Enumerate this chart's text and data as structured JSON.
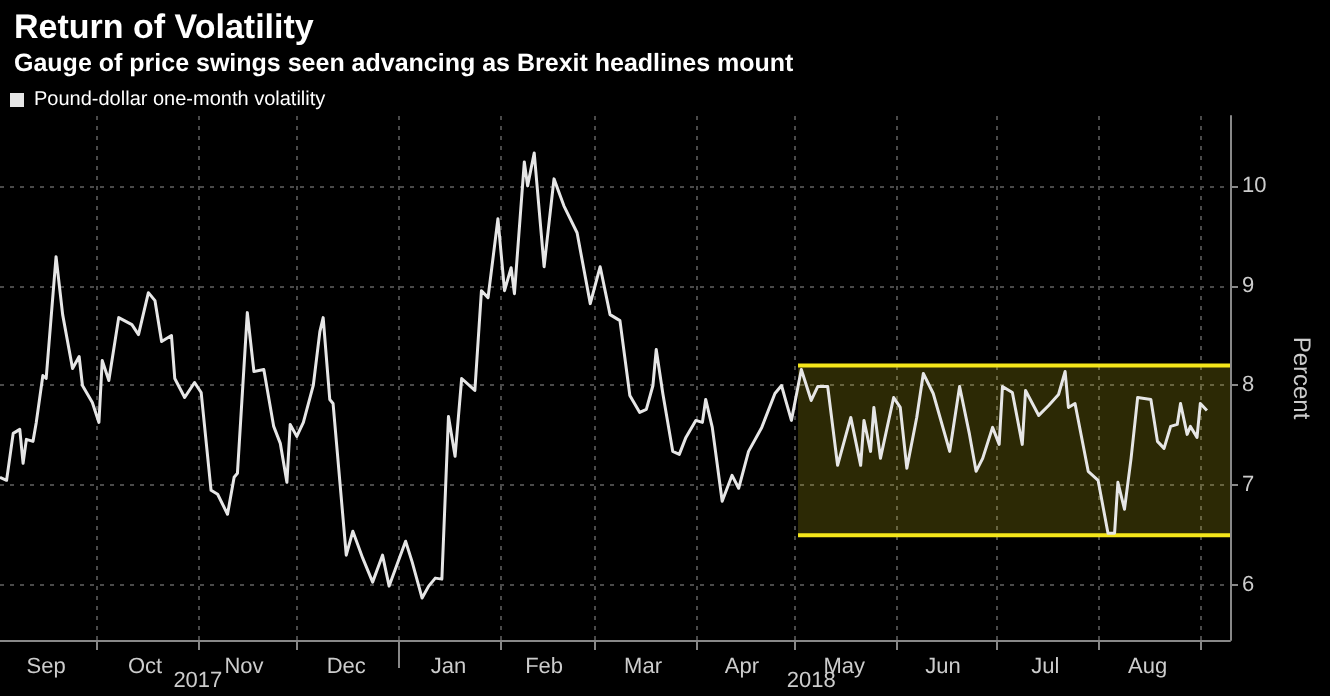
{
  "chart_data": {
    "type": "line",
    "title": "Return of Volatility",
    "subtitle": "Gauge of price swings seen advancing as Brexit headlines mount",
    "ylabel": "Percent",
    "x": [
      "2017-09-02",
      "2017-09-04",
      "2017-09-06",
      "2017-09-08",
      "2017-09-09",
      "2017-09-10",
      "2017-09-12",
      "2017-09-13",
      "2017-09-15",
      "2017-09-16",
      "2017-09-19",
      "2017-09-21",
      "2017-09-24",
      "2017-09-26",
      "2017-09-27",
      "2017-09-30",
      "2017-10-02",
      "2017-10-03",
      "2017-10-05",
      "2017-10-08",
      "2017-10-12",
      "2017-10-14",
      "2017-10-17",
      "2017-10-19",
      "2017-10-21",
      "2017-10-24",
      "2017-10-25",
      "2017-10-28",
      "2017-10-31",
      "2017-11-02",
      "2017-11-05",
      "2017-11-07",
      "2017-11-10",
      "2017-11-12",
      "2017-11-13",
      "2017-11-16",
      "2017-11-18",
      "2017-11-21",
      "2017-11-24",
      "2017-11-26",
      "2017-11-28",
      "2017-11-29",
      "2017-12-01",
      "2017-12-03",
      "2017-12-06",
      "2017-12-08",
      "2017-12-09",
      "2017-12-11",
      "2017-12-12",
      "2017-12-16",
      "2017-12-18",
      "2017-12-21",
      "2017-12-24",
      "2017-12-27",
      "2017-12-29",
      "2018-01-03",
      "2018-01-05",
      "2018-01-08",
      "2018-01-10",
      "2018-01-12",
      "2018-01-14",
      "2018-01-16",
      "2018-01-18",
      "2018-01-20",
      "2018-01-24",
      "2018-01-26",
      "2018-01-28",
      "2018-01-31",
      "2018-02-02",
      "2018-02-04",
      "2018-02-05",
      "2018-02-08",
      "2018-02-09",
      "2018-02-11",
      "2018-02-14",
      "2018-02-17",
      "2018-02-20",
      "2018-02-24",
      "2018-02-28",
      "2018-03-03",
      "2018-03-06",
      "2018-03-09",
      "2018-03-12",
      "2018-03-15",
      "2018-03-17",
      "2018-03-19",
      "2018-03-20",
      "2018-03-22",
      "2018-03-25",
      "2018-03-27",
      "2018-03-29",
      "2018-04-01",
      "2018-04-03",
      "2018-04-04",
      "2018-04-06",
      "2018-04-09",
      "2018-04-12",
      "2018-04-14",
      "2018-04-17",
      "2018-04-21",
      "2018-04-25",
      "2018-04-27",
      "2018-04-28",
      "2018-04-30",
      "2018-05-03",
      "2018-05-06",
      "2018-05-08",
      "2018-05-11",
      "2018-05-14",
      "2018-05-16",
      "2018-05-18",
      "2018-05-21",
      "2018-05-22",
      "2018-05-24",
      "2018-05-25",
      "2018-05-27",
      "2018-05-31",
      "2018-06-02",
      "2018-06-04",
      "2018-06-07",
      "2018-06-09",
      "2018-06-12",
      "2018-06-17",
      "2018-06-20",
      "2018-06-23",
      "2018-06-25",
      "2018-06-27",
      "2018-06-30",
      "2018-07-02",
      "2018-07-03",
      "2018-07-06",
      "2018-07-09",
      "2018-07-10",
      "2018-07-14",
      "2018-07-17",
      "2018-07-20",
      "2018-07-22",
      "2018-07-23",
      "2018-07-25",
      "2018-07-29",
      "2018-08-01",
      "2018-08-04",
      "2018-08-06",
      "2018-08-07",
      "2018-08-09",
      "2018-08-11",
      "2018-08-13",
      "2018-08-17",
      "2018-08-19",
      "2018-08-21",
      "2018-08-23",
      "2018-08-25",
      "2018-08-26",
      "2018-08-28",
      "2018-08-29",
      "2018-08-31",
      "2018-09-01",
      "2018-09-03"
    ],
    "series": [
      {
        "name": "Pound-dollar one-month volatility",
        "color": "#e6e6e6",
        "values": [
          7.08,
          7.05,
          7.52,
          7.56,
          7.22,
          7.46,
          7.44,
          7.63,
          8.1,
          8.07,
          9.29,
          8.71,
          8.17,
          8.29,
          8.0,
          7.83,
          7.63,
          8.25,
          8.05,
          8.68,
          8.61,
          8.51,
          8.93,
          8.85,
          8.44,
          8.5,
          8.07,
          7.88,
          8.03,
          7.93,
          6.95,
          6.91,
          6.71,
          7.08,
          7.12,
          8.73,
          8.14,
          8.16,
          7.59,
          7.42,
          7.03,
          7.61,
          7.49,
          7.63,
          8.0,
          8.54,
          8.68,
          7.86,
          7.82,
          6.3,
          6.54,
          6.27,
          6.03,
          6.3,
          5.99,
          6.44,
          6.23,
          5.87,
          5.99,
          6.07,
          6.06,
          7.69,
          7.29,
          8.07,
          7.95,
          8.95,
          8.88,
          9.67,
          8.95,
          9.18,
          8.92,
          10.24,
          10.0,
          10.33,
          9.19,
          10.07,
          9.8,
          9.53,
          8.82,
          9.19,
          8.71,
          8.65,
          7.9,
          7.73,
          7.76,
          8.0,
          8.36,
          7.92,
          7.34,
          7.31,
          7.48,
          7.65,
          7.63,
          7.86,
          7.58,
          6.84,
          7.1,
          6.97,
          7.34,
          7.58,
          7.92,
          8.0,
          7.88,
          7.65,
          8.16,
          7.85,
          7.99,
          7.99,
          7.2,
          7.44,
          7.68,
          7.2,
          7.65,
          7.34,
          7.78,
          7.27,
          7.88,
          7.78,
          7.17,
          7.68,
          8.12,
          7.92,
          7.34,
          7.99,
          7.51,
          7.14,
          7.27,
          7.58,
          7.41,
          7.99,
          7.93,
          7.41,
          7.95,
          7.7,
          7.8,
          7.91,
          8.14,
          7.78,
          7.82,
          7.14,
          7.05,
          6.52,
          6.52,
          7.03,
          6.76,
          7.27,
          7.88,
          7.86,
          7.44,
          7.37,
          7.59,
          7.61,
          7.82,
          7.51,
          7.59,
          7.48,
          7.82,
          7.75
        ]
      },
      {
        "type": "line",
        "color": "#f5e61a",
        "x": [
          "2018-05-02",
          "2018-09-10"
        ],
        "values": [
          8.2,
          8.2
        ]
      },
      {
        "type": "line",
        "color": "#f5e61a",
        "x": [
          "2018-05-02",
          "2018-09-10"
        ],
        "values": [
          6.5,
          6.5
        ]
      }
    ],
    "xlim": [
      "2017-09-02",
      "2018-09-10"
    ],
    "xticks": [
      {
        "value": "2017-09-16",
        "label": "Sep"
      },
      {
        "value": "2017-10-01",
        "label": null
      },
      {
        "value": "2017-10-16",
        "label": "Oct"
      },
      {
        "value": "2017-11-01",
        "label": null
      },
      {
        "value": "2017-11-15",
        "label": "Nov"
      },
      {
        "value": "2017-12-01",
        "label": null
      },
      {
        "value": "2017-12-16",
        "label": "Dec"
      },
      {
        "value": "2018-01-01",
        "label": null
      },
      {
        "value": "2018-01-16",
        "label": "Jan"
      },
      {
        "value": "2018-02-01",
        "label": null
      },
      {
        "value": "2018-02-14",
        "label": "Feb"
      },
      {
        "value": "2018-03-01",
        "label": null
      },
      {
        "value": "2018-03-16",
        "label": "Mar"
      },
      {
        "value": "2018-04-01",
        "label": null
      },
      {
        "value": "2018-04-15",
        "label": "Apr"
      },
      {
        "value": "2018-05-01",
        "label": null
      },
      {
        "value": "2018-05-16",
        "label": "May"
      },
      {
        "value": "2018-06-01",
        "label": null
      },
      {
        "value": "2018-06-15",
        "label": "Jun"
      },
      {
        "value": "2018-07-01",
        "label": null
      },
      {
        "value": "2018-07-16",
        "label": "Jul"
      },
      {
        "value": "2018-08-01",
        "label": null
      },
      {
        "value": "2018-08-16",
        "label": "Aug"
      },
      {
        "value": "2018-09-01",
        "label": null
      }
    ],
    "x2lim": [
      "2017-09-02",
      "2018-09-10"
    ],
    "x2ticks": [
      {
        "value": "2017-11-01",
        "label": "2017"
      },
      {
        "value": "2018-01-01",
        "label": null
      },
      {
        "value": "2018-05-06",
        "label": "2018"
      }
    ],
    "ylim": [
      5.45,
      10.7
    ],
    "yticks": [
      6,
      7,
      8,
      9,
      10
    ],
    "bands": [
      {
        "axis": "y",
        "from": 6.5,
        "to": 8.2,
        "color": "#f5e61a"
      }
    ],
    "grid": true,
    "legend": "top left",
    "marker": "none",
    "line_style": "solid"
  }
}
